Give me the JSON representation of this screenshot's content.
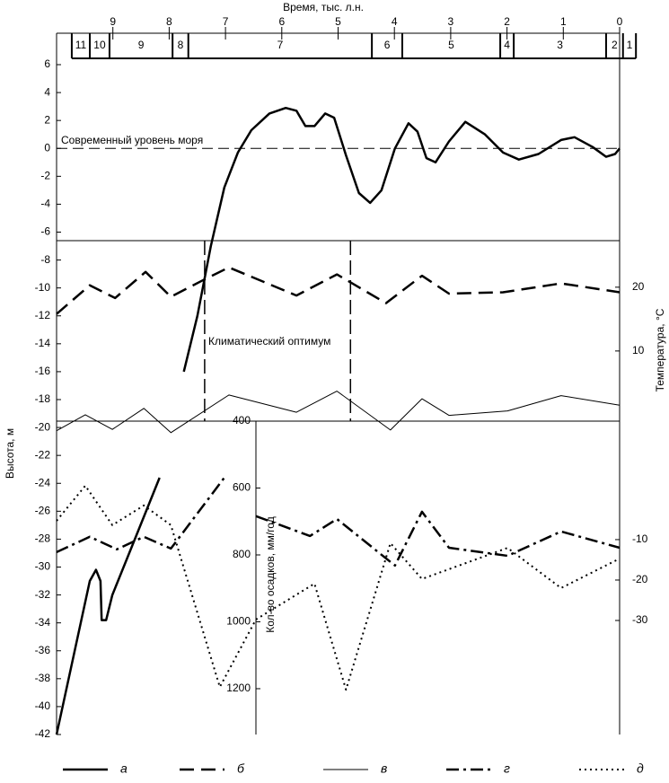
{
  "chart_data": {
    "type": "line",
    "x_label": "Время, тыс. л.н.",
    "y_label": "Высота, м",
    "y2_label": "Температура, °С",
    "y4_label": "Кол-во осадков, мм/год",
    "annotations": [
      "Современный уровень моря",
      "Климатический оптимум"
    ],
    "sea_level": 0,
    "optimum_bounds": [
      7.37,
      4.78
    ],
    "xlim": [
      10,
      0
    ],
    "xticks": [
      9,
      8,
      7,
      6,
      5,
      4,
      3,
      2,
      1,
      0
    ],
    "zones": [
      "11",
      "10",
      "9",
      "8",
      "7",
      "6",
      "5",
      "4",
      "3",
      "2",
      "1"
    ],
    "zone_bounds": [
      9.73,
      9.41,
      9.06,
      7.94,
      7.66,
      4.4,
      3.86,
      2.12,
      1.88,
      0.24,
      -0.06,
      -0.29
    ],
    "ylim": [
      -42,
      6
    ],
    "yticks": [
      6,
      4,
      2,
      0,
      -2,
      -4,
      -6,
      -8,
      -10,
      -12,
      -14,
      -16,
      -18,
      -20,
      -22,
      -24,
      -26,
      -28,
      -30,
      -32,
      -34,
      -36,
      -38,
      -40,
      -42
    ],
    "y2lim": [
      -1,
      27.3
    ],
    "y2ticks": [
      20,
      10
    ],
    "y3lim": [
      -58.2,
      19.3
    ],
    "y3ticks": [
      -10,
      -20,
      -30
    ],
    "y4lim": [
      1337,
      400
    ],
    "y4ticks": [
      400,
      600,
      800,
      1000,
      1200
    ],
    "series": [
      {
        "name": "а",
        "color": "#000000",
        "style": "solid",
        "axis": "y",
        "x": [
          10.0,
          9.41,
          9.3,
          9.22,
          9.2,
          9.12,
          9.01,
          8.61,
          8.17,
          7.95,
          7.74,
          7.5,
          7.26,
          7.02,
          6.78,
          6.54,
          6.22,
          5.93,
          5.74,
          5.58,
          5.42,
          5.23,
          5.07,
          4.86,
          4.63,
          4.43,
          4.23,
          3.99,
          3.75,
          3.59,
          3.43,
          3.27,
          3.03,
          2.74,
          2.39,
          2.07,
          1.79,
          1.44,
          1.04,
          0.8,
          0.48,
          0.24,
          0.08,
          0
        ],
        "values": [
          -42,
          -31,
          -30.2,
          -31,
          -33.8,
          -33.8,
          -32,
          -28,
          -23.6,
          null,
          -16,
          -12,
          -7,
          -2.8,
          -0.3,
          1.3,
          2.5,
          2.9,
          2.7,
          1.6,
          1.6,
          2.5,
          2.2,
          -0.5,
          -3.2,
          -3.9,
          -3,
          0,
          1.8,
          1.2,
          -0.7,
          -1,
          0.5,
          1.9,
          1,
          -0.3,
          -0.8,
          -0.4,
          0.6,
          0.8,
          0.1,
          -0.6,
          -0.4,
          0
        ]
      },
      {
        "name": "б",
        "color": "#000000",
        "style": "dashed",
        "axis": "y2",
        "x": [
          10,
          9.41,
          8.96,
          8.42,
          7.97,
          7.42,
          6.94,
          5.74,
          5.02,
          4.15,
          3.51,
          3.03,
          2.07,
          1.04,
          0
        ],
        "values": [
          15.8,
          20.3,
          18.3,
          22.4,
          18.5,
          21.0,
          23.1,
          18.7,
          22.0,
          17.5,
          21.8,
          19.0,
          19.2,
          20.6,
          19.2
        ]
      },
      {
        "name": "в",
        "color": "#000000",
        "style": "thin",
        "axis": "y2",
        "x": [
          10,
          9.49,
          9.01,
          8.45,
          7.97,
          6.94,
          5.74,
          5.02,
          4.07,
          3.51,
          3.03,
          1.99,
          1.04,
          0
        ],
        "values": [
          -2.5,
          0.0,
          -2.3,
          1.0,
          -2.8,
          3.1,
          0.4,
          3.7,
          -2.4,
          2.5,
          -0.1,
          0.6,
          3.0,
          1.5
        ]
      },
      {
        "name": "г",
        "color": "#000000",
        "style": "dashdot",
        "axis": "y3",
        "x": [
          10,
          9.41,
          8.93,
          8.45,
          7.97,
          7.02,
          6.7,
          6.46,
          5.5,
          5.02,
          3.99,
          3.51,
          3.03,
          1.99,
          1.04,
          0
        ],
        "values": [
          -13.1,
          -9.3,
          -12.4,
          -9.3,
          -12.2,
          5.3,
          null,
          -4.2,
          -9.1,
          -4.9,
          -16.4,
          -3.1,
          -12.0,
          -14.0,
          -8.0,
          -12.0
        ]
      },
      {
        "name": "д",
        "color": "#000000",
        "style": "dotted",
        "axis": "y4",
        "x": [
          10,
          9.49,
          9.01,
          8.45,
          7.97,
          7.1,
          6.46,
          5.42,
          4.86,
          4.07,
          3.51,
          1.99,
          1.04,
          0
        ],
        "values": [
          698,
          593,
          711,
          652,
          711,
          1195,
          993,
          886,
          1203,
          765,
          872,
          779,
          899,
          811
        ]
      }
    ]
  }
}
